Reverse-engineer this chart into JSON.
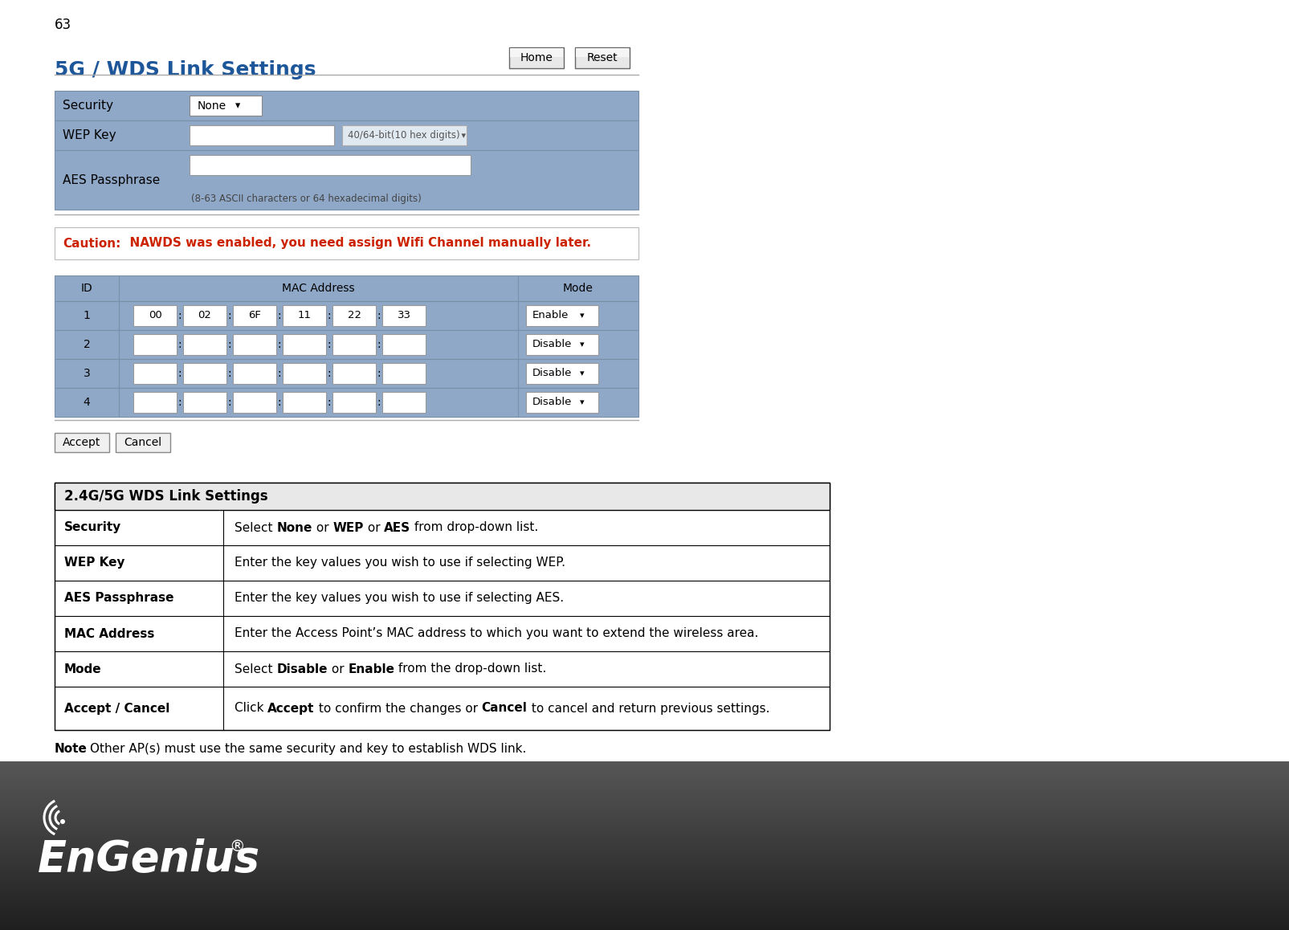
{
  "page_number": "63",
  "title": "5G / WDS Link Settings",
  "title_color": "#1e5799",
  "bg_color": "#ffffff",
  "form_label_bg": "#8fa8c8",
  "form_row1_bg": "#8fa8c8",
  "form_row2_bg": "#8fa8c8",
  "form_row3_bg": "#8fa8c8",
  "caution_bold": "Caution:",
  "caution_rest": "  NAWDS was enabled, you need assign Wifi Channel manually later.",
  "note_bold": "Note",
  "note_rest": ": Other AP(s) must use the same security and key to establish WDS link.",
  "mac_header_bg": "#8fa8c8",
  "mac_rows": [
    {
      "id": "1",
      "mac": [
        "00",
        "02",
        "6F",
        "11",
        "22",
        "33"
      ],
      "mode": "Enable"
    },
    {
      "id": "2",
      "mac": [
        "",
        "",
        "",
        "",
        "",
        ""
      ],
      "mode": "Disable"
    },
    {
      "id": "3",
      "mac": [
        "",
        "",
        "",
        "",
        "",
        ""
      ],
      "mode": "Disable"
    },
    {
      "id": "4",
      "mac": [
        "",
        "",
        "",
        "",
        "",
        ""
      ],
      "mode": "Disable"
    }
  ],
  "table_header": "2.4G/5G WDS Link Settings",
  "table_header_bg": "#e8e8e8",
  "table_rows": [
    {
      "label": "Security",
      "parts": [
        [
          "Select ",
          false
        ],
        [
          "None",
          true
        ],
        [
          " or ",
          false
        ],
        [
          "WEP",
          true
        ],
        [
          " or ",
          false
        ],
        [
          "AES",
          true
        ],
        [
          " from drop-down list.",
          false
        ]
      ]
    },
    {
      "label": "WEP Key",
      "parts": [
        [
          "Enter the key values you wish to use if selecting WEP.",
          false
        ]
      ]
    },
    {
      "label": "AES Passphrase",
      "parts": [
        [
          "Enter the key values you wish to use if selecting AES.",
          false
        ]
      ]
    },
    {
      "label": "MAC Address",
      "parts": [
        [
          "Enter the Access Point’s MAC address to which you want to extend the wireless area.",
          false
        ]
      ]
    },
    {
      "label": "Mode",
      "parts": [
        [
          "Select ",
          false
        ],
        [
          "Disable",
          true
        ],
        [
          " or ",
          false
        ],
        [
          "Enable",
          true
        ],
        [
          " from the drop-down list.",
          false
        ]
      ]
    },
    {
      "label": "Accept / Cancel",
      "parts": [
        [
          "Click ",
          false
        ],
        [
          "Accept",
          true
        ],
        [
          " to confirm the changes or ",
          false
        ],
        [
          "Cancel",
          true
        ],
        [
          " to cancel and return previous settings.",
          false
        ]
      ]
    }
  ]
}
